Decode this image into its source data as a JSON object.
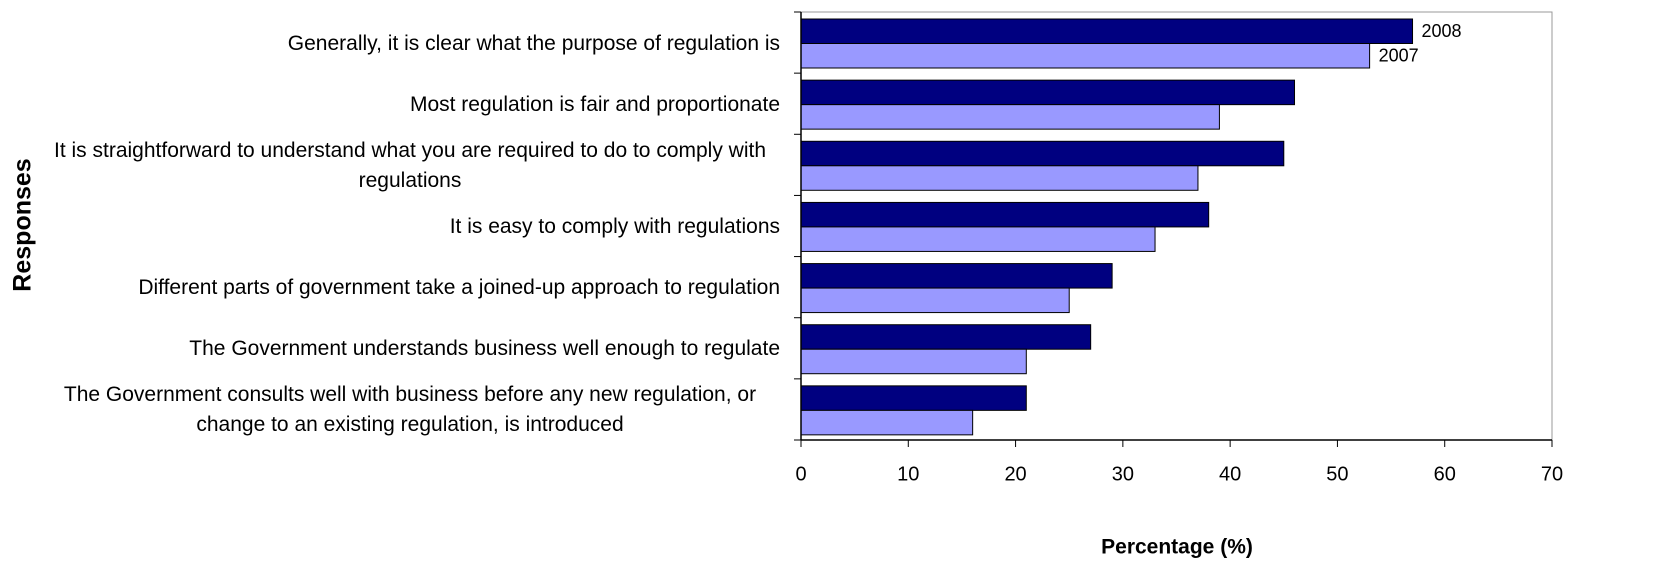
{
  "chart_data": {
    "type": "bar",
    "orientation": "horizontal",
    "xlabel": "Percentage (%)",
    "ylabel": "Responses",
    "categories": [
      "Generally, it is clear what the purpose of regulation is",
      "Most regulation is fair and proportionate",
      "It is straightforward to understand what you are required to do to comply with regulations",
      "It is easy to comply with regulations",
      "Different parts of government take a joined-up approach to regulation",
      "The Government understands business well enough to regulate",
      "The Government consults well with business before any new regulation, or change to an existing regulation, is introduced"
    ],
    "series": [
      {
        "name": "2008",
        "color": "#000080",
        "values": [
          57,
          46,
          45,
          38,
          29,
          27,
          21
        ]
      },
      {
        "name": "2007",
        "color": "#9999ff",
        "values": [
          53,
          39,
          37,
          33,
          25,
          21,
          16
        ]
      }
    ],
    "xlim": [
      0,
      70
    ],
    "xticks": [
      0,
      10,
      20,
      30,
      40,
      50,
      60,
      70
    ]
  }
}
